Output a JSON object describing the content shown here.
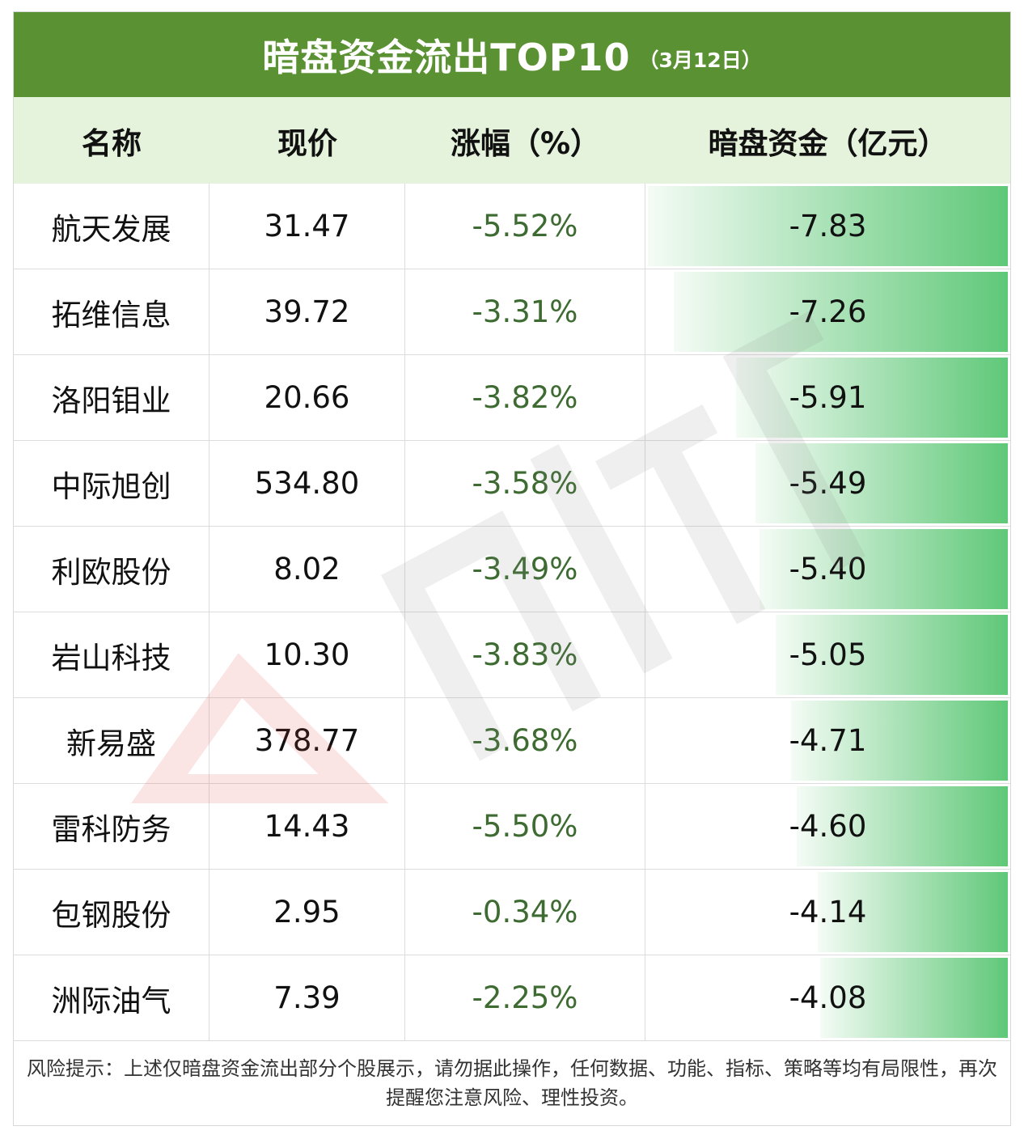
{
  "title": "暗盘资金流出TOP10",
  "title_date": "（3月12日）",
  "headers": [
    "名称",
    "现价",
    "涨幅（%）",
    "暗盘资金（亿元）"
  ],
  "footer": "风险提示：上述仅暗盘资金流出部分个股展示，请勿据此操作，任何数据、功能、指标、策略等均有局限性，再次提醒您注意风险、理性投资。",
  "colors": {
    "title_bg": "#5a9132",
    "header_bg": "#e5f2dc",
    "bar": "#5fc878",
    "change_text": "#3e6b32"
  },
  "chart_data": {
    "type": "table",
    "bar_max": 7.83,
    "rows": [
      {
        "name": "航天发展",
        "price": "31.47",
        "change": "-5.52%",
        "flow": "-7.83",
        "flow_value": -7.83
      },
      {
        "name": "拓维信息",
        "price": "39.72",
        "change": "-3.31%",
        "flow": "-7.26",
        "flow_value": -7.26
      },
      {
        "name": "洛阳钼业",
        "price": "20.66",
        "change": "-3.82%",
        "flow": "-5.91",
        "flow_value": -5.91
      },
      {
        "name": "中际旭创",
        "price": "534.80",
        "change": "-3.58%",
        "flow": "-5.49",
        "flow_value": -5.49
      },
      {
        "name": "利欧股份",
        "price": "8.02",
        "change": "-3.49%",
        "flow": "-5.40",
        "flow_value": -5.4
      },
      {
        "name": "岩山科技",
        "price": "10.30",
        "change": "-3.83%",
        "flow": "-5.05",
        "flow_value": -5.05
      },
      {
        "name": "新易盛",
        "price": "378.77",
        "change": "-3.68%",
        "flow": "-4.71",
        "flow_value": -4.71
      },
      {
        "name": "雷科防务",
        "price": "14.43",
        "change": "-5.50%",
        "flow": "-4.60",
        "flow_value": -4.6
      },
      {
        "name": "包钢股份",
        "price": "2.95",
        "change": "-0.34%",
        "flow": "-4.14",
        "flow_value": -4.14
      },
      {
        "name": "洲际油气",
        "price": "7.39",
        "change": "-2.25%",
        "flow": "-4.08",
        "flow_value": -4.08
      }
    ]
  }
}
